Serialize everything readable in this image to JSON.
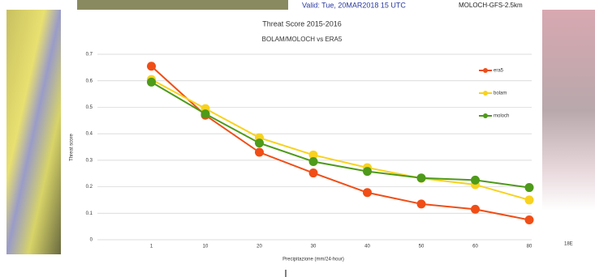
{
  "background_texts": [
    "Valid: Tue, 20MAR2018  15 UTC",
    "MOLOCH-GFS-2.5km",
    "18E"
  ],
  "chart_data": {
    "type": "line",
    "title": "Threat Score 2015-2016",
    "subtitle": "BOLAM/MOLOCH vs ERA5",
    "x_label": "Precipitazione (mm/24-hour)",
    "y_label": "Threat score",
    "categories": [
      "1",
      "10",
      "20",
      "30",
      "40",
      "50",
      "60",
      "80"
    ],
    "series": [
      {
        "name": "era5",
        "color": "#f04e16",
        "values": [
          0.655,
          0.47,
          0.33,
          0.252,
          0.178,
          0.135,
          0.115,
          0.075
        ]
      },
      {
        "name": "bolam",
        "color": "#f8d21f",
        "values": [
          0.605,
          0.495,
          0.385,
          0.32,
          0.272,
          0.232,
          0.208,
          0.15
        ]
      },
      {
        "name": "moloch",
        "color": "#4e9a1a",
        "values": [
          0.595,
          0.475,
          0.365,
          0.295,
          0.258,
          0.233,
          0.225,
          0.197
        ]
      }
    ],
    "ylim": [
      0,
      0.7
    ],
    "yticks": [
      0,
      0.1,
      0.2,
      0.3,
      0.4,
      0.5,
      0.6,
      0.7
    ],
    "grid": true,
    "legend": "right"
  }
}
